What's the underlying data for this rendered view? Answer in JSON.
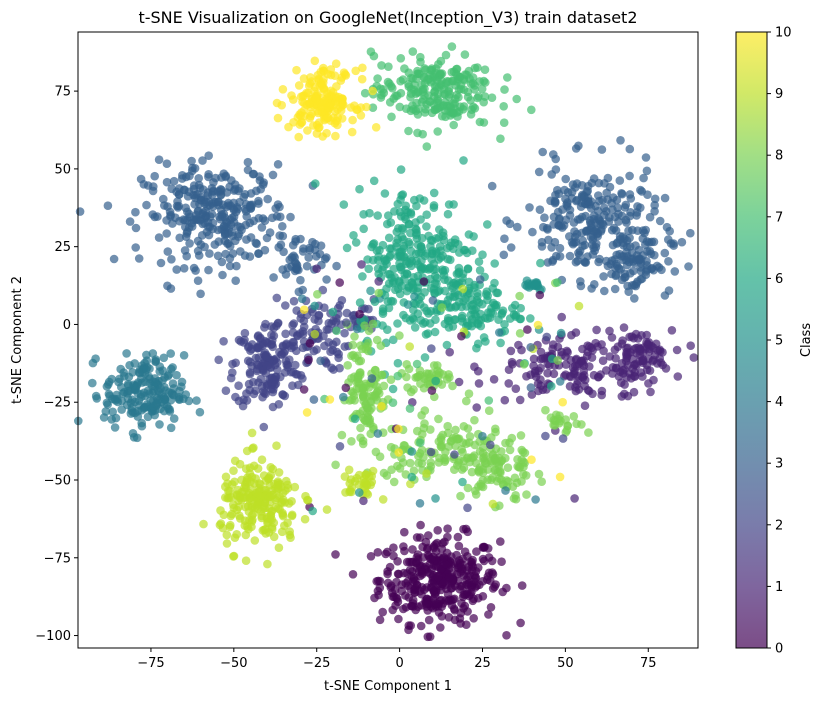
{
  "chart_data": {
    "type": "scatter",
    "title": "t-SNE Visualization on GoogleNet(Inception_V3) train dataset2",
    "xlabel": "t-SNE Component 1",
    "ylabel": "t-SNE Component 2",
    "xlim": [
      -97,
      90
    ],
    "ylim": [
      -104,
      94
    ],
    "xticks": [
      -75,
      -50,
      -25,
      0,
      25,
      50,
      75
    ],
    "yticks": [
      -100,
      -75,
      -50,
      -25,
      0,
      25,
      50,
      75
    ],
    "xtick_labels": [
      "−75",
      "−50",
      "−25",
      "0",
      "25",
      "50",
      "75"
    ],
    "ytick_labels": [
      "−100",
      "−75",
      "−50",
      "−25",
      "0",
      "25",
      "50",
      "75"
    ],
    "grid": false,
    "marker_alpha": 0.7,
    "colorbar": {
      "label": "Class",
      "colormap": "viridis",
      "range": [
        0,
        10
      ],
      "ticks": [
        0,
        1,
        2,
        3,
        4,
        5,
        6,
        7,
        8,
        9,
        10
      ],
      "tick_labels": [
        "0",
        "1",
        "2",
        "3",
        "4",
        "5",
        "6",
        "7",
        "8",
        "9",
        "10"
      ],
      "colors": [
        "#440154",
        "#482475",
        "#414487",
        "#355f8d",
        "#2a788e",
        "#21918c",
        "#22a884",
        "#44bf70",
        "#7ad151",
        "#bddf26",
        "#fde725"
      ]
    },
    "clusters": [
      {
        "class": 0,
        "cx": 12,
        "cy": -82,
        "sx": 9,
        "sy": 7,
        "n": 360
      },
      {
        "class": 1,
        "cx": 55,
        "cy": -14,
        "sx": 14,
        "sy": 5,
        "n": 170
      },
      {
        "class": 1,
        "cx": 72,
        "cy": -10,
        "sx": 5,
        "sy": 4,
        "n": 60
      },
      {
        "class": 2,
        "cx": -40,
        "cy": -13,
        "sx": 5,
        "sy": 7,
        "n": 150
      },
      {
        "class": 2,
        "cx": -27,
        "cy": -3,
        "sx": 6,
        "sy": 6,
        "n": 90
      },
      {
        "class": 2,
        "cx": -12,
        "cy": 2,
        "sx": 3,
        "sy": 3,
        "n": 20
      },
      {
        "class": 3,
        "cx": -55,
        "cy": 35,
        "sx": 11,
        "sy": 8,
        "n": 300
      },
      {
        "class": 3,
        "cx": -30,
        "cy": 20,
        "sx": 4,
        "sy": 4,
        "n": 40
      },
      {
        "class": 3,
        "cx": 58,
        "cy": 33,
        "sx": 10,
        "sy": 9,
        "n": 240
      },
      {
        "class": 3,
        "cx": 70,
        "cy": 20,
        "sx": 6,
        "sy": 5,
        "n": 90
      },
      {
        "class": 4,
        "cx": -77,
        "cy": -22,
        "sx": 6,
        "sy": 6,
        "n": 190
      },
      {
        "class": 5,
        "cx": 40,
        "cy": 13,
        "sx": 2,
        "sy": 1,
        "n": 18
      },
      {
        "class": 6,
        "cx": 5,
        "cy": 20,
        "sx": 9,
        "sy": 12,
        "n": 300
      },
      {
        "class": 6,
        "cx": 22,
        "cy": 5,
        "sx": 7,
        "sy": 5,
        "n": 110
      },
      {
        "class": 7,
        "cx": 10,
        "cy": 75,
        "sx": 9,
        "sy": 6,
        "n": 220
      },
      {
        "class": 8,
        "cx": -10,
        "cy": -20,
        "sx": 3,
        "sy": 9,
        "n": 110
      },
      {
        "class": 8,
        "cx": 12,
        "cy": -40,
        "sx": 10,
        "sy": 5,
        "n": 120
      },
      {
        "class": 8,
        "cx": 30,
        "cy": -47,
        "sx": 5,
        "sy": 6,
        "n": 80
      },
      {
        "class": 8,
        "cx": 8,
        "cy": -17,
        "sx": 4,
        "sy": 2,
        "n": 40
      },
      {
        "class": 8,
        "cx": 50,
        "cy": -32,
        "sx": 3,
        "sy": 2,
        "n": 20
      },
      {
        "class": 9,
        "cx": -42,
        "cy": -58,
        "sx": 6,
        "sy": 7,
        "n": 210
      },
      {
        "class": 9,
        "cx": -12,
        "cy": -51,
        "sx": 3,
        "sy": 2,
        "n": 30
      },
      {
        "class": 10,
        "cx": -23,
        "cy": 72,
        "sx": 5,
        "sy": 5,
        "n": 170
      }
    ],
    "noise_points": 120
  }
}
